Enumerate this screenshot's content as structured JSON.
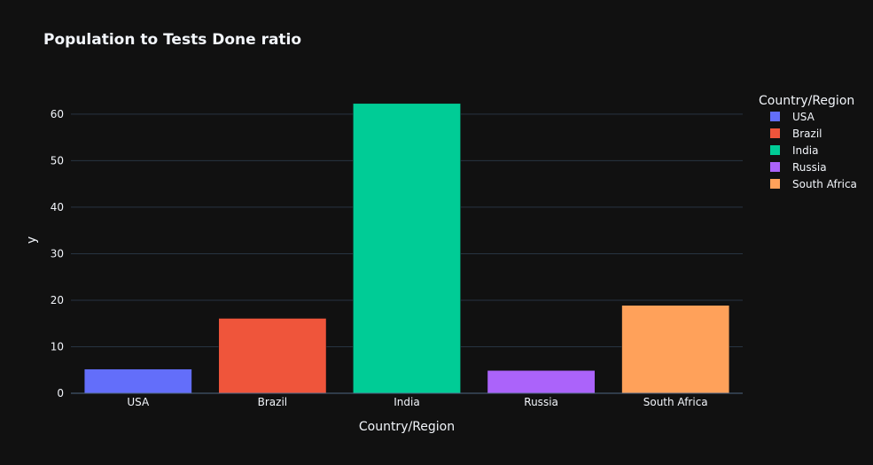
{
  "chart_data": {
    "type": "bar",
    "title": "Population to Tests Done ratio",
    "xlabel": "Country/Region",
    "ylabel": "y",
    "categories": [
      "USA",
      "Brazil",
      "India",
      "Russia",
      "South Africa"
    ],
    "values": [
      5.2,
      16.1,
      62.3,
      4.9,
      18.9
    ],
    "colors": [
      "#636efa",
      "#ef553b",
      "#00cc96",
      "#ab63fa",
      "#ffa15a"
    ],
    "ylim": [
      0,
      65.5
    ],
    "yticks": [
      0,
      10,
      20,
      30,
      40,
      50,
      60
    ],
    "grid": true,
    "legend": {
      "title": "Country/Region",
      "placement": "right",
      "entries": [
        "USA",
        "Brazil",
        "India",
        "Russia",
        "South Africa"
      ]
    },
    "theme": {
      "background": "#111111",
      "grid_color": "#283442",
      "text_color": "#f2f5fa"
    }
  }
}
